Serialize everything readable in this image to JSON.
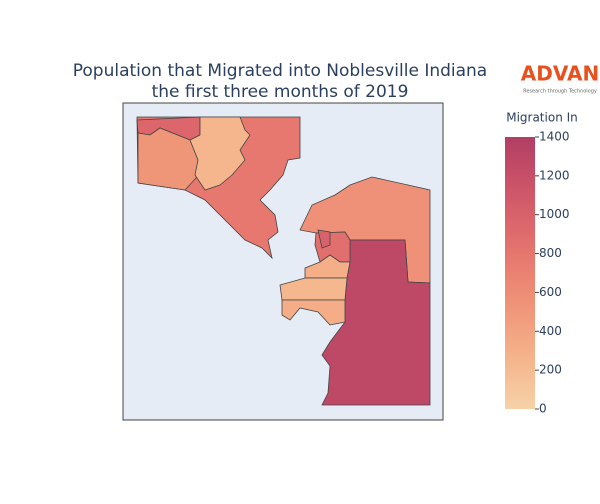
{
  "chart_data": {
    "type": "choropleth",
    "title": [
      "Population that Migrated into Noblesville Indiana",
      "the first three months of 2019"
    ],
    "colorbar_title": "Migration In",
    "values": [
      780,
      950,
      520,
      240,
      560,
      1280,
      870,
      1000,
      300,
      230,
      320
    ],
    "colorscale": [
      "#f6d2a9",
      "#f5b78e",
      "#f19c7c",
      "#ea8171",
      "#dd686c",
      "#ca5268",
      "#b13f64"
    ],
    "clim": [
      0,
      1400
    ],
    "cticks": [
      0,
      200,
      400,
      600,
      800,
      1000,
      1200,
      1400
    ],
    "logo": {
      "name": "ADVAN",
      "tagline": "Research through Technology",
      "color": "#e8501e"
    }
  }
}
